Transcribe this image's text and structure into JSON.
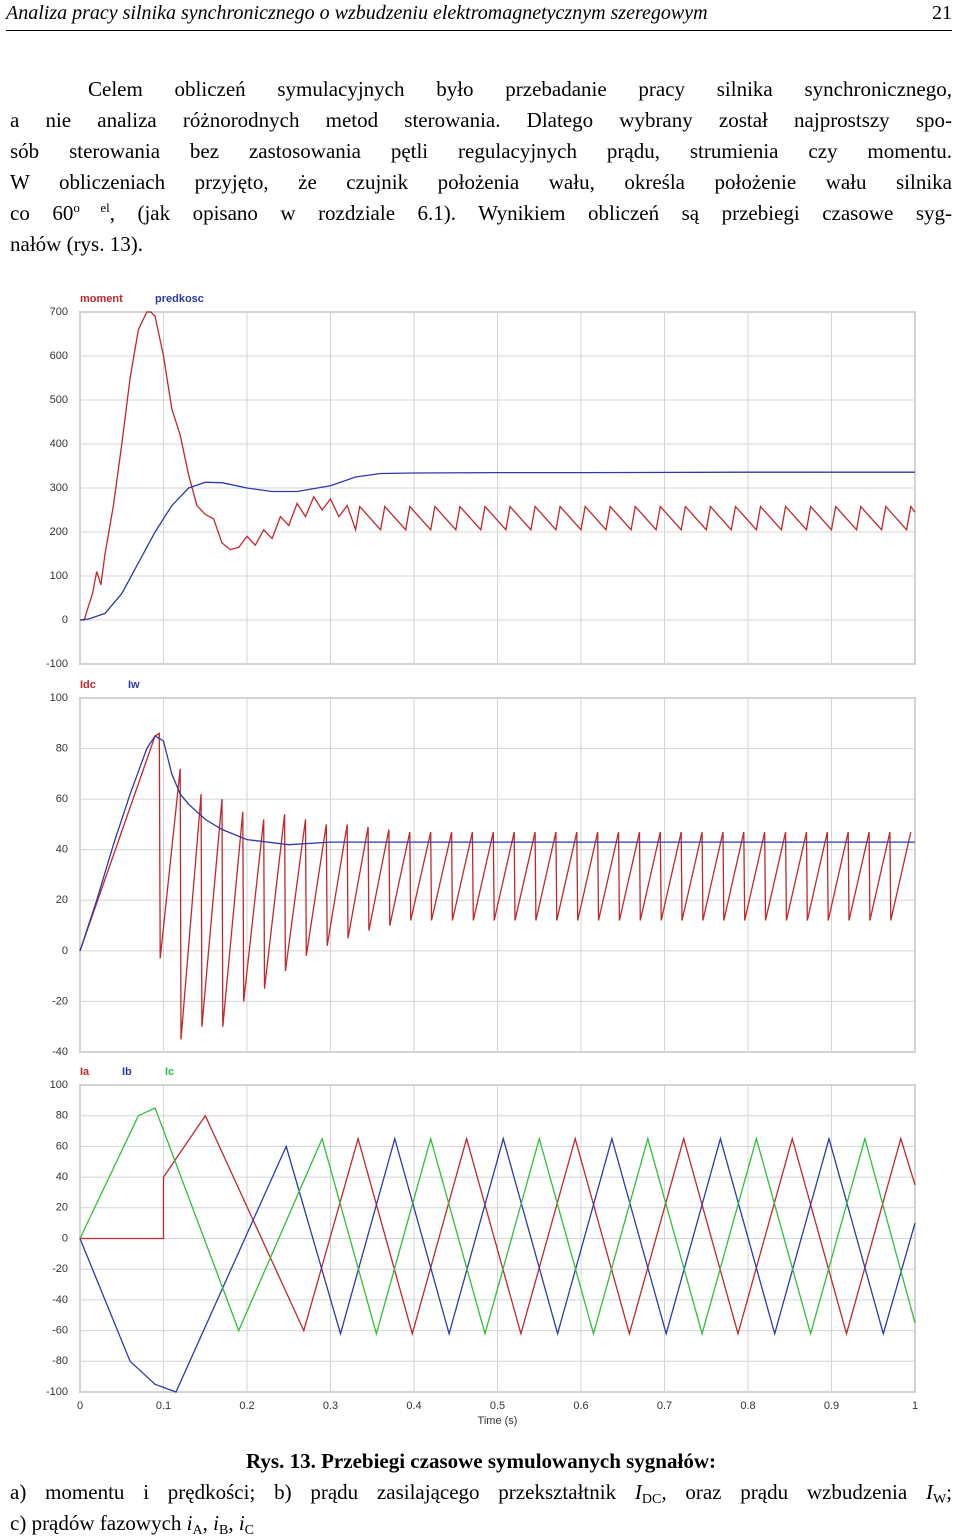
{
  "header": {
    "title": "Analiza pracy silnika synchronicznego o wzbudzeniu elektromagnetycznym szeregowym",
    "page": "21"
  },
  "paragraph": {
    "lines": [
      [
        "Celem obliczeń symulacyjnych było przebadanie pracy silnika synchronicznego,"
      ],
      [
        "a nie analiza różnorodnych metod sterowania. Dlatego wybrany został najprostszy spo-"
      ],
      [
        "sób sterowania bez zastosowania pętli regulacyjnych prądu, strumienia czy momentu."
      ],
      [
        "W obliczeniach przyjęto, że czujnik położenia wału, określa położenie wału silnika"
      ],
      [
        "co 60",
        "o el",
        ", (jak opisano w rozdziale 6.1). Wynikiem obliczeń są przebiegi czasowe syg-"
      ],
      [
        "nałów (rys. 13)."
      ]
    ]
  },
  "chart_data": [
    {
      "type": "line",
      "grid": true,
      "xlim": [
        0,
        1
      ],
      "xticks": [
        0,
        0.1,
        0.2,
        0.3,
        0.4,
        0.5,
        0.6,
        0.7,
        0.8,
        0.9,
        1
      ],
      "ylim": [
        -100,
        700
      ],
      "yticks": [
        -100,
        0,
        100,
        200,
        300,
        400,
        500,
        600,
        700
      ],
      "series": [
        {
          "name": "moment",
          "color": "#c0282d",
          "x": [
            0,
            0.005,
            0.01,
            0.015,
            0.02,
            0.025,
            0.03,
            0.04,
            0.05,
            0.06,
            0.07,
            0.08,
            0.085,
            0.09,
            0.1,
            0.11,
            0.12,
            0.13,
            0.14,
            0.15,
            0.16,
            0.17,
            0.18,
            0.19,
            0.2,
            0.21,
            0.22,
            0.23,
            0.24,
            0.25,
            0.26,
            0.27,
            0.28,
            0.29,
            0.3,
            0.31,
            0.32,
            0.33,
            0.335,
            0.36,
            0.365,
            0.39,
            0.395,
            0.42,
            0.425,
            0.45,
            0.455,
            0.48,
            0.485,
            0.51,
            0.515,
            0.54,
            0.545,
            0.57,
            0.575,
            0.6,
            0.605,
            0.63,
            0.635,
            0.66,
            0.665,
            0.69,
            0.695,
            0.72,
            0.725,
            0.75,
            0.755,
            0.78,
            0.785,
            0.81,
            0.815,
            0.84,
            0.845,
            0.87,
            0.875,
            0.9,
            0.905,
            0.93,
            0.935,
            0.96,
            0.965,
            0.99,
            0.995,
            1
          ],
          "values": [
            0,
            0,
            30,
            60,
            110,
            80,
            150,
            260,
            400,
            550,
            660,
            700,
            700,
            690,
            600,
            480,
            420,
            330,
            260,
            240,
            230,
            175,
            160,
            165,
            190,
            170,
            205,
            185,
            235,
            215,
            265,
            235,
            280,
            250,
            275,
            235,
            260,
            205,
            258,
            205,
            258,
            205,
            258,
            205,
            258,
            205,
            258,
            205,
            258,
            205,
            258,
            205,
            258,
            205,
            258,
            205,
            258,
            205,
            258,
            205,
            258,
            205,
            258,
            205,
            258,
            205,
            258,
            205,
            258,
            205,
            258,
            205,
            258,
            205,
            258,
            205,
            258,
            205,
            258,
            205,
            258,
            205,
            258,
            245
          ]
        },
        {
          "name": "predkosc",
          "color": "#2c3aa8",
          "x": [
            0,
            0.01,
            0.03,
            0.05,
            0.07,
            0.09,
            0.11,
            0.13,
            0.15,
            0.17,
            0.2,
            0.23,
            0.26,
            0.3,
            0.33,
            0.36,
            0.4,
            0.5,
            0.6,
            0.8,
            1
          ],
          "values": [
            0,
            2,
            15,
            60,
            130,
            200,
            260,
            300,
            313,
            312,
            300,
            292,
            292,
            305,
            325,
            333,
            334,
            335,
            335,
            336,
            336
          ]
        }
      ]
    },
    {
      "type": "line",
      "grid": true,
      "xlim": [
        0,
        1
      ],
      "xticks": [
        0,
        0.1,
        0.2,
        0.3,
        0.4,
        0.5,
        0.6,
        0.7,
        0.8,
        0.9,
        1
      ],
      "ylim": [
        -40,
        100
      ],
      "yticks": [
        -40,
        -20,
        0,
        20,
        40,
        60,
        80,
        100
      ],
      "series": [
        {
          "name": "Idc",
          "color": "#c0282d",
          "x": [
            0,
            0.09,
            0.095,
            0.096,
            0.12,
            0.121,
            0.145,
            0.146,
            0.17,
            0.171,
            0.195,
            0.196,
            0.22,
            0.221,
            0.245,
            0.246,
            0.27,
            0.271,
            0.295,
            0.296,
            0.32,
            0.321,
            0.345,
            0.346,
            0.37,
            0.371,
            0.395,
            0.396,
            0.42,
            0.421,
            0.445,
            0.446,
            0.47,
            0.471,
            0.495,
            0.496,
            0.52,
            0.521,
            0.545,
            0.546,
            0.57,
            0.571,
            0.595,
            0.596,
            0.62,
            0.621,
            0.645,
            0.646,
            0.67,
            0.671,
            0.695,
            0.696,
            0.72,
            0.721,
            0.745,
            0.746,
            0.77,
            0.771,
            0.795,
            0.796,
            0.82,
            0.821,
            0.845,
            0.846,
            0.87,
            0.871,
            0.895,
            0.896,
            0.92,
            0.921,
            0.945,
            0.946,
            0.97,
            0.971,
            0.995
          ],
          "values": [
            0,
            85,
            86,
            -3,
            72,
            -35,
            62,
            -30,
            60,
            -30,
            55,
            -20,
            52,
            -15,
            54,
            -8,
            52,
            -2,
            50,
            2,
            50,
            5,
            49,
            8,
            48,
            10,
            47,
            12,
            47,
            12,
            47,
            12,
            47,
            12,
            47,
            12,
            47,
            12,
            47,
            12,
            47,
            12,
            47,
            12,
            47,
            12,
            47,
            12,
            47,
            12,
            47,
            12,
            47,
            12,
            47,
            12,
            47,
            12,
            47,
            12,
            47,
            12,
            47,
            12,
            47,
            12,
            47,
            12,
            47,
            12,
            47,
            12,
            47,
            12,
            47
          ]
        },
        {
          "name": "Iw",
          "color": "#2c3aa8",
          "x": [
            0,
            0.02,
            0.04,
            0.06,
            0.08,
            0.09,
            0.1,
            0.11,
            0.12,
            0.13,
            0.14,
            0.15,
            0.17,
            0.2,
            0.25,
            0.3,
            0.4,
            1
          ],
          "values": [
            0,
            20,
            42,
            62,
            80,
            85,
            83,
            70,
            62,
            58,
            55,
            52,
            48,
            44,
            42,
            43,
            43,
            43
          ]
        }
      ]
    },
    {
      "type": "line",
      "grid": true,
      "xlabel": "Time (s)",
      "xlim": [
        0,
        1
      ],
      "xticks": [
        0,
        0.1,
        0.2,
        0.3,
        0.4,
        0.5,
        0.6,
        0.7,
        0.8,
        0.9,
        1
      ],
      "ylim": [
        -100,
        100
      ],
      "yticks": [
        -100,
        -80,
        -60,
        -40,
        -20,
        0,
        20,
        40,
        60,
        80,
        100
      ],
      "series": [
        {
          "name": "Ia",
          "color": "#c0282d",
          "x": [
            0,
            0.1,
            0.1,
            0.15,
            0.268,
            0.333,
            0.398,
            0.463,
            0.528,
            0.593,
            0.658,
            0.723,
            0.788,
            0.853,
            0.918,
            0.983,
            1
          ],
          "values": [
            0,
            0,
            40,
            80,
            -60,
            65,
            -62,
            65,
            -62,
            65,
            -62,
            65,
            -62,
            65,
            -62,
            65,
            35
          ]
        },
        {
          "name": "Ib",
          "color": "#2c3aa8",
          "x": [
            0,
            0.03,
            0.06,
            0.09,
            0.115,
            0.247,
            0.312,
            0.377,
            0.442,
            0.507,
            0.572,
            0.637,
            0.702,
            0.767,
            0.832,
            0.897,
            0.962,
            1
          ],
          "values": [
            0,
            -40,
            -80,
            -95,
            -100,
            60,
            -62,
            65,
            -62,
            65,
            -62,
            65,
            -62,
            65,
            -62,
            65,
            -62,
            10
          ]
        },
        {
          "name": "Ic",
          "color": "#2fbf3a",
          "x": [
            0,
            0.07,
            0.09,
            0.19,
            0.29,
            0.355,
            0.42,
            0.485,
            0.55,
            0.615,
            0.68,
            0.745,
            0.81,
            0.875,
            0.94,
            1
          ],
          "values": [
            0,
            80,
            85,
            -60,
            65,
            -62,
            65,
            -62,
            65,
            -62,
            65,
            -62,
            65,
            -62,
            65,
            -55
          ]
        }
      ]
    }
  ],
  "caption": {
    "label": "Rys. 13. Przebiegi czasowe symulowanych sygnałów:",
    "lines": [
      [
        "a) momentu i prędkości; b) prądu zasilającego przekształtnik ",
        "I",
        "DC",
        ", oraz prądu wzbudzenia ",
        "I",
        "W",
        ";"
      ],
      [
        "c) prądów fazowych ",
        "i",
        "A",
        ", ",
        "i",
        "B",
        ", ",
        "i",
        "C"
      ]
    ]
  }
}
